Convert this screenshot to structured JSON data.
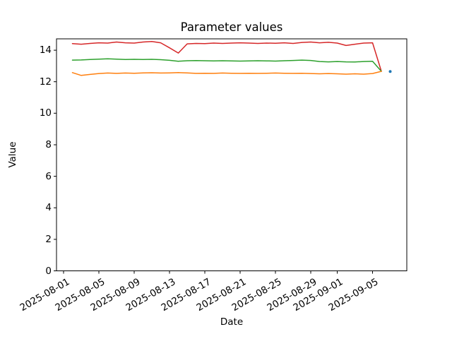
{
  "chart_data": {
    "type": "line",
    "title": "Parameter values",
    "xlabel": "Date",
    "ylabel": "Value",
    "grid": false,
    "legend": null,
    "background": "#ffffff",
    "axis_color": "#000000",
    "ylim": [
      0,
      14.72
    ],
    "xlim_days": [
      -0.8,
      38.88
    ],
    "x_epoch": "2025-08-01",
    "y_tick_labels": [
      "0",
      "2",
      "4",
      "6",
      "8",
      "10",
      "12",
      "14"
    ],
    "x_tick_labels": [
      "2025-08-01",
      "2025-08-05",
      "2025-08-09",
      "2025-08-13",
      "2025-08-17",
      "2025-08-21",
      "2025-08-25",
      "2025-08-29",
      "2025-09-01",
      "2025-09-05"
    ],
    "dates": [
      "2025-08-02",
      "2025-08-03",
      "2025-08-04",
      "2025-08-05",
      "2025-08-06",
      "2025-08-07",
      "2025-08-08",
      "2025-08-09",
      "2025-08-10",
      "2025-08-11",
      "2025-08-12",
      "2025-08-13",
      "2025-08-14",
      "2025-08-15",
      "2025-08-16",
      "2025-08-17",
      "2025-08-18",
      "2025-08-19",
      "2025-08-20",
      "2025-08-21",
      "2025-08-22",
      "2025-08-23",
      "2025-08-24",
      "2025-08-25",
      "2025-08-26",
      "2025-08-27",
      "2025-08-28",
      "2025-08-29",
      "2025-08-30",
      "2025-08-31",
      "2025-09-01",
      "2025-09-02",
      "2025-09-03",
      "2025-09-04",
      "2025-09-05",
      "2025-09-06"
    ],
    "series": [
      {
        "name": "red",
        "color": "#d62728",
        "style": "line",
        "values": [
          14.42,
          14.38,
          14.43,
          14.47,
          14.45,
          14.52,
          14.47,
          14.45,
          14.52,
          14.55,
          14.47,
          14.15,
          13.82,
          14.4,
          14.43,
          14.42,
          14.45,
          14.43,
          14.45,
          14.47,
          14.45,
          14.43,
          14.45,
          14.44,
          14.47,
          14.43,
          14.49,
          14.52,
          14.47,
          14.5,
          14.45,
          14.3,
          14.38,
          14.45,
          14.47,
          12.66
        ]
      },
      {
        "name": "green",
        "color": "#2ca02c",
        "style": "line",
        "values": [
          13.37,
          13.38,
          13.41,
          13.43,
          13.45,
          13.43,
          13.41,
          13.42,
          13.41,
          13.42,
          13.4,
          13.36,
          13.3,
          13.33,
          13.34,
          13.33,
          13.32,
          13.33,
          13.32,
          13.31,
          13.32,
          13.33,
          13.32,
          13.31,
          13.33,
          13.35,
          13.37,
          13.35,
          13.28,
          13.26,
          13.28,
          13.26,
          13.25,
          13.28,
          13.3,
          12.66
        ]
      },
      {
        "name": "orange",
        "color": "#ff7f0e",
        "style": "line",
        "values": [
          12.58,
          12.4,
          12.46,
          12.52,
          12.55,
          12.53,
          12.55,
          12.54,
          12.56,
          12.57,
          12.55,
          12.56,
          12.58,
          12.56,
          12.53,
          12.54,
          12.53,
          12.55,
          12.54,
          12.53,
          12.54,
          12.53,
          12.54,
          12.55,
          12.54,
          12.53,
          12.54,
          12.52,
          12.5,
          12.52,
          12.5,
          12.48,
          12.5,
          12.48,
          12.52,
          12.66
        ]
      },
      {
        "name": "blue-point",
        "color": "#1f77b4",
        "style": "scatter",
        "dates": [
          "2025-09-07"
        ],
        "values": [
          12.65
        ]
      }
    ]
  }
}
